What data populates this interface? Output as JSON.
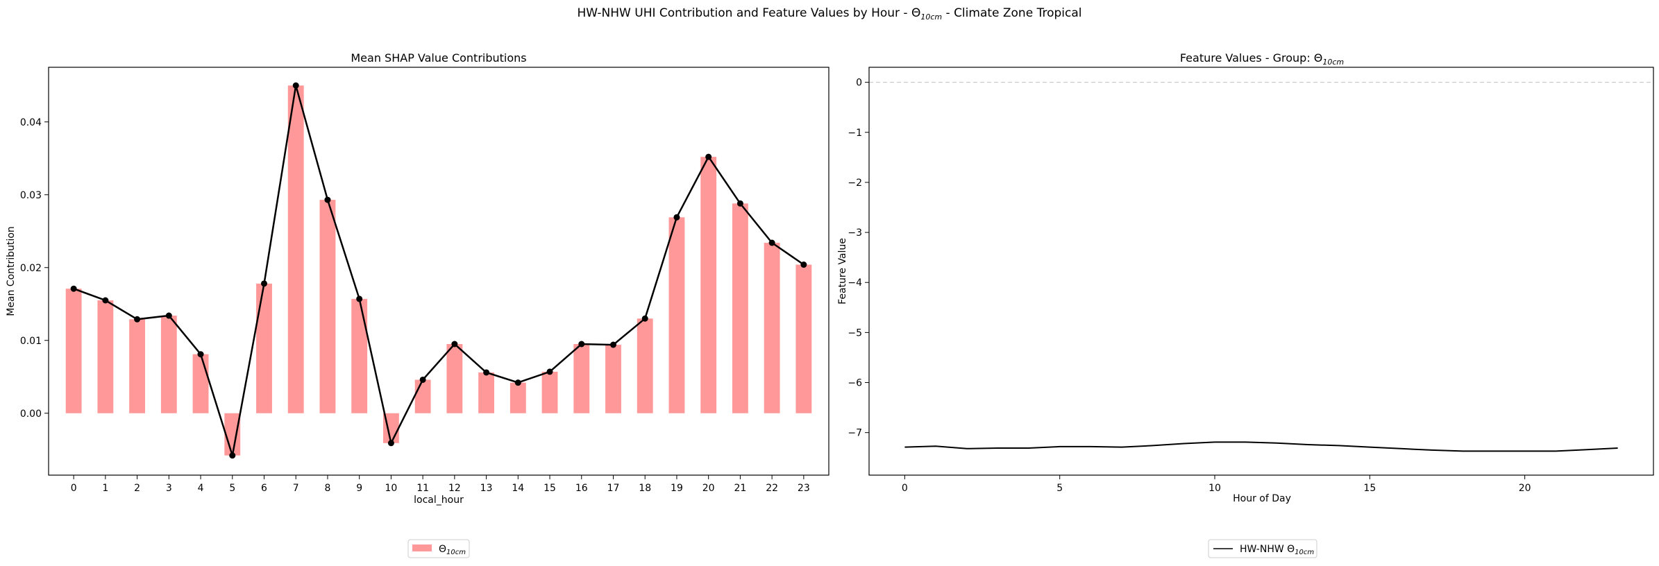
{
  "figure": {
    "title_parts": [
      "HW-NHW UHI Contribution and Feature Values by Hour - Θ",
      "10cm",
      " - Climate Zone Tropical"
    ]
  },
  "chart_data": [
    {
      "type": "bar",
      "overlay": "line",
      "title": "Mean SHAP Value Contributions",
      "xlabel": "local_hour",
      "ylabel": "Mean Contribution",
      "categories": [
        "0",
        "1",
        "2",
        "3",
        "4",
        "5",
        "6",
        "7",
        "8",
        "9",
        "10",
        "11",
        "12",
        "13",
        "14",
        "15",
        "16",
        "17",
        "18",
        "19",
        "20",
        "21",
        "22",
        "23"
      ],
      "values": [
        0.0171,
        0.0155,
        0.0129,
        0.0134,
        0.0081,
        -0.0058,
        0.0178,
        0.045,
        0.0293,
        0.0157,
        -0.0041,
        0.0046,
        0.0095,
        0.0056,
        0.0042,
        0.0057,
        0.0095,
        0.0094,
        0.013,
        0.0269,
        0.0352,
        0.0288,
        0.0234,
        0.0204
      ],
      "ylim": [
        -0.0085,
        0.0475
      ],
      "yticks": [
        "0.00",
        "0.01",
        "0.02",
        "0.03",
        "0.04"
      ],
      "bar_color": "#ff9999",
      "line_color": "#000000",
      "legend": {
        "position": "bottom-center",
        "label_parts": [
          "Θ",
          "10cm"
        ]
      }
    },
    {
      "type": "line",
      "title_parts": [
        "Feature Values - Group: Θ",
        "10cm"
      ],
      "xlabel": "Hour of Day",
      "ylabel": "Feature Value",
      "x": [
        0,
        1,
        2,
        3,
        4,
        5,
        6,
        7,
        8,
        9,
        10,
        11,
        12,
        13,
        14,
        15,
        16,
        17,
        18,
        19,
        20,
        21,
        22,
        23
      ],
      "series": [
        {
          "name_parts": [
            "HW-NHW Θ",
            "10cm"
          ],
          "color": "#000000",
          "values": [
            -7.29,
            -7.27,
            -7.32,
            -7.31,
            -7.31,
            -7.28,
            -7.28,
            -7.29,
            -7.26,
            -7.22,
            -7.19,
            -7.19,
            -7.21,
            -7.24,
            -7.26,
            -7.29,
            -7.32,
            -7.35,
            -7.37,
            -7.37,
            -7.37,
            -7.37,
            -7.34,
            -7.31
          ]
        }
      ],
      "xlim": [
        -1.15,
        24.15
      ],
      "ylim": [
        -7.85,
        0.3
      ],
      "xticks": [
        0,
        5,
        10,
        15,
        20
      ],
      "yticks": [
        0,
        -1,
        -2,
        -3,
        -4,
        -5,
        -6,
        -7
      ],
      "reference_line": {
        "y": 0,
        "style": "dashed",
        "color": "#cccccc"
      },
      "legend": {
        "position": "bottom-center"
      }
    }
  ]
}
